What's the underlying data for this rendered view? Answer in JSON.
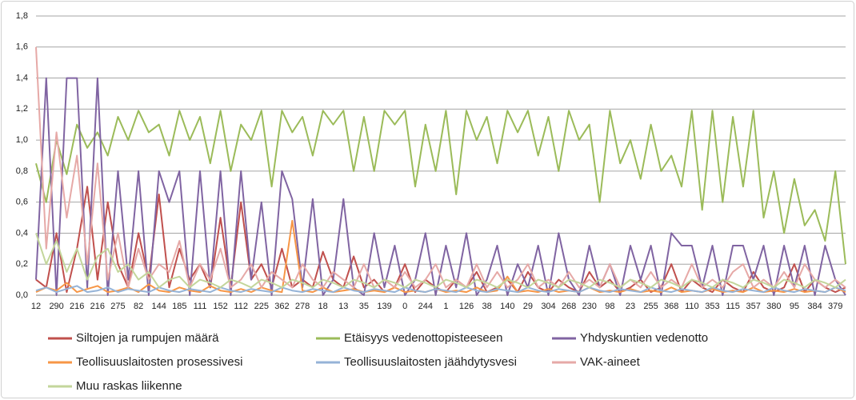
{
  "chart_data": {
    "type": "line",
    "categories": [
      "12",
      null,
      "290",
      null,
      "216",
      null,
      "216",
      null,
      "275",
      null,
      "82",
      null,
      "144",
      null,
      "185",
      null,
      "111",
      null,
      "152",
      null,
      "112",
      null,
      "225",
      null,
      "362",
      null,
      "278",
      null,
      "18",
      null,
      "13",
      null,
      "35",
      null,
      "139",
      null,
      "0",
      null,
      "244",
      null,
      "1",
      null,
      "126",
      null,
      "38",
      null,
      "140",
      null,
      "29",
      null,
      "304",
      null,
      "268",
      null,
      "230",
      null,
      "98",
      null,
      "23",
      null,
      "255",
      null,
      "368",
      null,
      "110",
      null,
      "353",
      null,
      "115",
      null,
      "357",
      null,
      "380",
      null,
      "95",
      null,
      "384",
      null,
      "379",
      null
    ],
    "ylim": [
      0,
      1.8
    ],
    "yticks": [
      {
        "value": 0,
        "label": "0,0"
      },
      {
        "value": 0.2,
        "label": "0,2"
      },
      {
        "value": 0.4,
        "label": "0,4"
      },
      {
        "value": 0.6,
        "label": "0,6"
      },
      {
        "value": 0.8,
        "label": "0,8"
      },
      {
        "value": 1.0,
        "label": "1,0"
      },
      {
        "value": 1.2,
        "label": "1,2"
      },
      {
        "value": 1.4,
        "label": "1,4"
      },
      {
        "value": 1.6,
        "label": "1,6"
      },
      {
        "value": 1.8,
        "label": "1,8"
      }
    ],
    "grid": true,
    "series": [
      {
        "name": "Siltojen ja rumpujen määrä",
        "color": "#c0504d",
        "values": [
          0.1,
          0.05,
          0.4,
          0.02,
          0.3,
          0.7,
          0.1,
          0.6,
          0.2,
          0.05,
          0.4,
          0.1,
          0.65,
          0.05,
          0.3,
          0.1,
          0.2,
          0.05,
          0.5,
          0.05,
          0.6,
          0.1,
          0.2,
          0.05,
          0.3,
          0.05,
          0.1,
          0.05,
          0.28,
          0.1,
          0.05,
          0.25,
          0.05,
          0.1,
          0.02,
          0.05,
          0.2,
          0.02,
          0.1,
          0.05,
          0.02,
          0.1,
          0.05,
          0.15,
          0.02,
          0.05,
          0.1,
          0.02,
          0.15,
          0.05,
          0.02,
          0.1,
          0.05,
          0.02,
          0.15,
          0.05,
          0.1,
          0.02,
          0.05,
          0.1,
          0.02,
          0.05,
          0.2,
          0.02,
          0.1,
          0.05,
          0.02,
          0.1,
          0.05,
          0.02,
          0.15,
          0.05,
          0.02,
          0.05,
          0.2,
          0.02,
          0.1,
          0.05,
          0.02,
          0.05
        ]
      },
      {
        "name": "Etäisyys vedenottopisteeseen",
        "color": "#9bbb59",
        "values": [
          0.85,
          0.6,
          1.0,
          0.78,
          1.1,
          0.95,
          1.05,
          0.9,
          1.15,
          1.0,
          1.19,
          1.05,
          1.1,
          0.9,
          1.19,
          1.0,
          1.15,
          0.85,
          1.19,
          0.8,
          1.1,
          1.0,
          1.19,
          0.7,
          1.19,
          1.05,
          1.15,
          0.9,
          1.19,
          1.1,
          1.19,
          0.8,
          1.15,
          0.8,
          1.19,
          1.1,
          1.19,
          0.7,
          1.1,
          0.8,
          1.19,
          0.65,
          1.19,
          1.0,
          1.15,
          0.85,
          1.19,
          1.05,
          1.19,
          0.9,
          1.15,
          0.8,
          1.19,
          1.0,
          1.1,
          0.6,
          1.19,
          0.85,
          1.0,
          0.75,
          1.1,
          0.8,
          0.9,
          0.7,
          1.19,
          0.55,
          1.19,
          0.6,
          1.15,
          0.7,
          1.19,
          0.5,
          0.8,
          0.4,
          0.75,
          0.45,
          0.55,
          0.35,
          0.8,
          0.2
        ]
      },
      {
        "name": "Yhdyskuntien vedenotto",
        "color": "#8064a2",
        "values": [
          0.1,
          1.4,
          0.0,
          1.4,
          1.4,
          0.05,
          1.4,
          0.0,
          0.8,
          0.1,
          0.8,
          0.0,
          0.8,
          0.6,
          0.8,
          0.0,
          0.8,
          0.05,
          0.8,
          0.0,
          0.8,
          0.1,
          0.6,
          0.0,
          0.8,
          0.62,
          0.05,
          0.62,
          0.0,
          0.1,
          0.62,
          0.05,
          0.0,
          0.4,
          0.05,
          0.32,
          0.0,
          0.1,
          0.4,
          0.0,
          0.32,
          0.05,
          0.4,
          0.0,
          0.1,
          0.32,
          0.0,
          0.2,
          0.05,
          0.32,
          0.0,
          0.4,
          0.1,
          0.0,
          0.32,
          0.05,
          0.2,
          0.0,
          0.32,
          0.1,
          0.32,
          0.0,
          0.4,
          0.32,
          0.32,
          0.05,
          0.32,
          0.0,
          0.32,
          0.32,
          0.1,
          0.32,
          0.0,
          0.32,
          0.05,
          0.32,
          0.0,
          0.32,
          0.1,
          0.0
        ]
      },
      {
        "name": "Teollisuuslaitosten prosessivesi",
        "color": "#f79646",
        "values": [
          0.02,
          0.05,
          0.03,
          0.08,
          0.02,
          0.04,
          0.06,
          0.02,
          0.03,
          0.05,
          0.02,
          0.07,
          0.03,
          0.02,
          0.05,
          0.03,
          0.02,
          0.06,
          0.03,
          0.02,
          0.04,
          0.02,
          0.05,
          0.03,
          0.02,
          0.48,
          0.03,
          0.02,
          0.05,
          0.02,
          0.03,
          0.04,
          0.02,
          0.03,
          0.02,
          0.05,
          0.02,
          0.03,
          0.02,
          0.04,
          0.02,
          0.03,
          0.02,
          0.05,
          0.02,
          0.03,
          0.12,
          0.02,
          0.03,
          0.02,
          0.04,
          0.02,
          0.03,
          0.02,
          0.05,
          0.02,
          0.03,
          0.02,
          0.04,
          0.02,
          0.03,
          0.02,
          0.05,
          0.02,
          0.03,
          0.02,
          0.04,
          0.02,
          0.03,
          0.02,
          0.05,
          0.02,
          0.03,
          0.02,
          0.04,
          0.02,
          0.03,
          0.02,
          0.05,
          0.02
        ]
      },
      {
        "name": "Teollisuuslaitosten jäähdytysvesi",
        "color": "#95b3d7",
        "values": [
          0.03,
          0.05,
          0.02,
          0.04,
          0.06,
          0.02,
          0.03,
          0.05,
          0.02,
          0.04,
          0.03,
          0.02,
          0.05,
          0.03,
          0.02,
          0.04,
          0.03,
          0.02,
          0.05,
          0.03,
          0.02,
          0.04,
          0.03,
          0.02,
          0.05,
          0.03,
          0.02,
          0.04,
          0.03,
          0.02,
          0.05,
          0.03,
          0.02,
          0.04,
          0.03,
          0.02,
          0.05,
          0.03,
          0.02,
          0.04,
          0.03,
          0.02,
          0.05,
          0.03,
          0.02,
          0.04,
          0.03,
          0.02,
          0.05,
          0.03,
          0.02,
          0.04,
          0.03,
          0.02,
          0.05,
          0.03,
          0.02,
          0.04,
          0.03,
          0.02,
          0.05,
          0.03,
          0.02,
          0.04,
          0.03,
          0.02,
          0.05,
          0.03,
          0.02,
          0.04,
          0.03,
          0.02,
          0.05,
          0.03,
          0.02,
          0.04,
          0.03,
          0.02,
          0.05,
          0.03
        ]
      },
      {
        "name": "VAK-aineet",
        "color": "#e6a9a7",
        "values": [
          1.6,
          0.3,
          1.05,
          0.5,
          0.9,
          0.2,
          0.85,
          0.1,
          0.4,
          0.05,
          0.3,
          0.1,
          0.2,
          0.15,
          0.35,
          0.05,
          0.2,
          0.1,
          0.3,
          0.05,
          0.1,
          0.2,
          0.05,
          0.15,
          0.1,
          0.05,
          0.2,
          0.1,
          0.05,
          0.15,
          0.1,
          0.05,
          0.2,
          0.05,
          0.1,
          0.05,
          0.15,
          0.05,
          0.1,
          0.2,
          0.05,
          0.1,
          0.05,
          0.2,
          0.05,
          0.15,
          0.05,
          0.1,
          0.2,
          0.05,
          0.1,
          0.05,
          0.15,
          0.05,
          0.1,
          0.05,
          0.2,
          0.05,
          0.1,
          0.05,
          0.15,
          0.05,
          0.1,
          0.05,
          0.2,
          0.05,
          0.1,
          0.05,
          0.15,
          0.2,
          0.05,
          0.1,
          0.05,
          0.15,
          0.05,
          0.2,
          0.1,
          0.05,
          0.1,
          0.05
        ]
      },
      {
        "name": "Muu raskas liikenne",
        "color": "#c3d69b",
        "values": [
          0.4,
          0.2,
          0.35,
          0.15,
          0.3,
          0.1,
          0.25,
          0.3,
          0.15,
          0.2,
          0.1,
          0.15,
          0.05,
          0.1,
          0.12,
          0.05,
          0.1,
          0.08,
          0.05,
          0.1,
          0.08,
          0.05,
          0.1,
          0.08,
          0.05,
          0.1,
          0.08,
          0.05,
          0.1,
          0.08,
          0.05,
          0.1,
          0.08,
          0.05,
          0.1,
          0.08,
          0.05,
          0.1,
          0.08,
          0.05,
          0.1,
          0.08,
          0.05,
          0.1,
          0.08,
          0.05,
          0.1,
          0.08,
          0.05,
          0.1,
          0.08,
          0.05,
          0.1,
          0.08,
          0.05,
          0.1,
          0.08,
          0.05,
          0.1,
          0.08,
          0.05,
          0.1,
          0.08,
          0.05,
          0.1,
          0.08,
          0.05,
          0.1,
          0.08,
          0.05,
          0.1,
          0.08,
          0.05,
          0.1,
          0.08,
          0.05,
          0.1,
          0.08,
          0.05,
          0.1
        ]
      }
    ]
  }
}
